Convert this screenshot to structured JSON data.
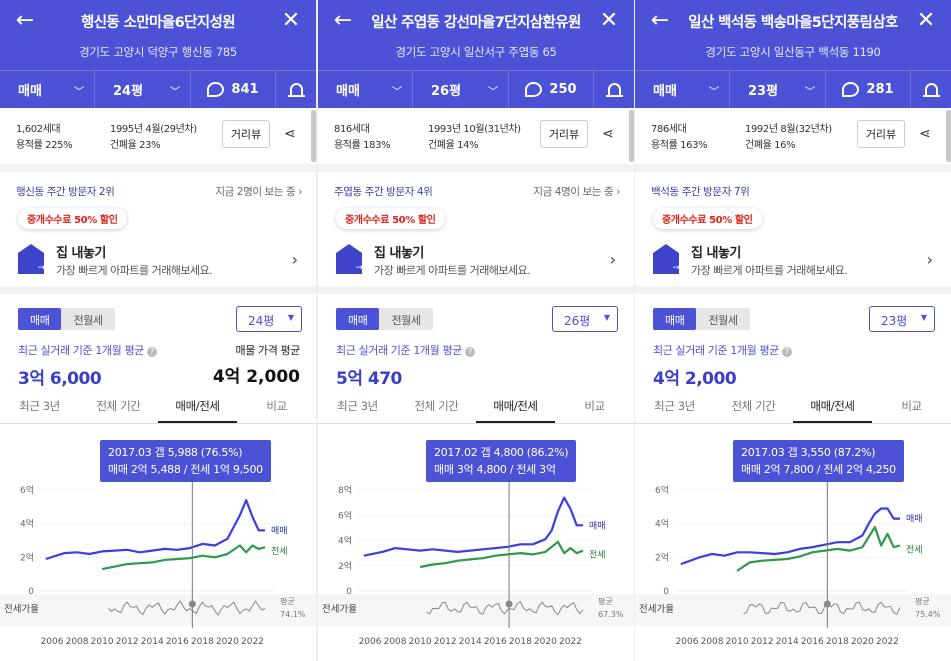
{
  "panels": [
    {
      "header": {
        "title": "행신동 소만마을6단지성원",
        "address": "경기도 고양시 덕양구 행신동 785",
        "deal_type": "매매",
        "size": "24평",
        "comments": "841"
      },
      "info": {
        "households": "1,602세대",
        "far": "용적률 225%",
        "built": "1995년 4월(29년차)",
        "bcr": "건폐율 23%",
        "view_btn": "거리뷰"
      },
      "visitors": {
        "left": "행신동 주간 방문자 2위",
        "right": "지금 2명이 보는 중 ›"
      },
      "promo": {
        "tag": "중개수수료 50% 할인",
        "title": "집 내놓기",
        "subtitle": "가장 빠르게 아파트를 거래해보세요."
      },
      "price": {
        "toggle_on": "매매",
        "toggle_off": "전월세",
        "size_select": "24평",
        "basis": "최근 실거래 기준 1개월 평균",
        "value": "3억 6,000",
        "avg_label": "매물 가격 평균",
        "avg_value": "4억 2,000"
      },
      "tabs": [
        "최근 3년",
        "전체 기간",
        "매매/전세",
        "비교"
      ],
      "tooltip": {
        "line1": "2017.03  갭 5,988 (76.5%)",
        "line2": "매매 2억 5,488 / 전세 1억 9,500"
      },
      "chart_data": {
        "type": "line",
        "x_ticks": [
          "2006",
          "2008",
          "2010",
          "2012",
          "2014",
          "2016",
          "2018",
          "2020",
          "2022"
        ],
        "y_ticks": [
          "6억",
          "4억",
          "2억",
          "0"
        ],
        "ylim": [
          0,
          6
        ],
        "ratio_label": "전세가율",
        "ratio_note": [
          "평균",
          "74.1%"
        ],
        "series": [
          {
            "name": "매매",
            "color": "#3b3fe0",
            "x": [
              2005.5,
              2007,
              2008,
              2009,
              2010,
              2011,
              2012,
              2013,
              2014,
              2015,
              2016,
              2017,
              2018,
              2019,
              2020,
              2020.5,
              2021,
              2021.5,
              2022,
              2022.5,
              2023
            ],
            "values": [
              1.9,
              2.25,
              2.3,
              2.2,
              2.35,
              2.4,
              2.45,
              2.3,
              2.4,
              2.5,
              2.45,
              2.55,
              2.8,
              2.7,
              3.1,
              3.8,
              4.5,
              5.4,
              4.4,
              3.6,
              3.6
            ]
          },
          {
            "name": "전세",
            "color": "#2e9a4a",
            "x": [
              2010,
              2011,
              2012,
              2013,
              2014,
              2015,
              2016,
              2017,
              2018,
              2019,
              2020,
              2021,
              2021.5,
              2022,
              2022.5,
              2023
            ],
            "values": [
              1.3,
              1.45,
              1.6,
              1.65,
              1.7,
              1.85,
              1.9,
              1.95,
              2.1,
              2.0,
              2.2,
              2.7,
              2.3,
              2.7,
              2.5,
              2.6
            ]
          }
        ],
        "cursor_x": 2017.2
      }
    },
    {
      "header": {
        "title": "일산 주엽동 강선마을7단지삼환유원",
        "address": "경기도 고양시 일산서구 주엽동 65",
        "deal_type": "매매",
        "size": "26평",
        "comments": "250"
      },
      "info": {
        "households": "816세대",
        "far": "용적률 183%",
        "built": "1993년 10월(31년차)",
        "bcr": "건폐율 14%",
        "view_btn": "거리뷰"
      },
      "visitors": {
        "left": "주엽동 주간 방문자 4위",
        "right": "지금 4명이 보는 중 ›"
      },
      "promo": {
        "tag": "중개수수료 50% 할인",
        "title": "집 내놓기",
        "subtitle": "가장 빠르게 아파트를 거래해보세요."
      },
      "price": {
        "toggle_on": "매매",
        "toggle_off": "전월세",
        "size_select": "26평",
        "basis": "최근 실거래 기준 1개월 평균",
        "value": "5억 470",
        "avg_label": "",
        "avg_value": ""
      },
      "tabs": [
        "최근 3년",
        "전체 기간",
        "매매/전세",
        "비교"
      ],
      "tooltip": {
        "line1": "2017.02  갭 4,800 (86.2%)",
        "line2": "매매 3억 4,800 / 전세 3억"
      },
      "chart_data": {
        "type": "line",
        "x_ticks": [
          "2006",
          "2008",
          "2010",
          "2012",
          "2014",
          "2016",
          "2018",
          "2020",
          "2022"
        ],
        "y_ticks": [
          "8억",
          "6억",
          "4억",
          "2억",
          "0"
        ],
        "ylim": [
          0,
          8
        ],
        "ratio_label": "전세가율",
        "ratio_note": [
          "평균",
          "67.3%"
        ],
        "series": [
          {
            "name": "매매",
            "color": "#3b3fe0",
            "x": [
              2005.5,
              2007,
              2008,
              2009,
              2010,
              2011,
              2012,
              2013,
              2014,
              2015,
              2016,
              2017,
              2018,
              2019,
              2020,
              2020.5,
              2021,
              2021.5,
              2022,
              2022.5,
              2023
            ],
            "values": [
              2.8,
              3.1,
              3.4,
              3.3,
              3.2,
              3.3,
              3.2,
              3.1,
              3.2,
              3.3,
              3.4,
              3.5,
              3.7,
              3.7,
              4.1,
              4.8,
              6.3,
              7.4,
              6.5,
              5.2,
              5.2
            ]
          },
          {
            "name": "전세",
            "color": "#2e9a4a",
            "x": [
              2010,
              2011,
              2012,
              2013,
              2014,
              2015,
              2016,
              2017,
              2018,
              2019,
              2020,
              2021,
              2021.5,
              2022,
              2022.5,
              2023
            ],
            "values": [
              1.9,
              2.1,
              2.2,
              2.4,
              2.5,
              2.6,
              2.8,
              2.9,
              3.0,
              2.9,
              3.1,
              3.9,
              3.0,
              3.4,
              3.0,
              3.2
            ]
          }
        ],
        "cursor_x": 2017.1
      }
    },
    {
      "header": {
        "title": "일산 백석동 백송마을5단지풍림삼호",
        "address": "경기도 고양시 일산동구 백석동 1190",
        "deal_type": "매매",
        "size": "23평",
        "comments": "281"
      },
      "info": {
        "households": "786세대",
        "far": "용적률 163%",
        "built": "1992년 8월(32년차)",
        "bcr": "건폐율 16%",
        "view_btn": "거리뷰"
      },
      "visitors": {
        "left": "백석동 주간 방문자 7위",
        "right": ""
      },
      "promo": {
        "tag": "중개수수료 50% 할인",
        "title": "집 내놓기",
        "subtitle": "가장 빠르게 아파트를 거래해보세요."
      },
      "price": {
        "toggle_on": "매매",
        "toggle_off": "전월세",
        "size_select": "23평",
        "basis": "최근 실거래 기준 1개월 평균",
        "value": "4억 2,000",
        "avg_label": "",
        "avg_value": ""
      },
      "tabs": [
        "최근 3년",
        "전체 기간",
        "매매/전세",
        "비교"
      ],
      "tooltip": {
        "line1": "2017.03  갭 3,550 (87.2%)",
        "line2": "매매 2억 7,800 / 전세 2억 4,250"
      },
      "chart_data": {
        "type": "line",
        "x_ticks": [
          "2006",
          "2008",
          "2010",
          "2012",
          "2014",
          "2016",
          "2018",
          "2020",
          "2022"
        ],
        "y_ticks": [
          "6억",
          "4억",
          "2억",
          "0"
        ],
        "ylim": [
          0,
          6
        ],
        "ratio_label": "전세가율",
        "ratio_note": [
          "평균",
          "75.4%"
        ],
        "series": [
          {
            "name": "매매",
            "color": "#3b3fe0",
            "x": [
              2005.5,
              2007,
              2008,
              2009,
              2010,
              2011,
              2012,
              2013,
              2014,
              2015,
              2016,
              2017,
              2018,
              2019,
              2020,
              2020.5,
              2021,
              2021.5,
              2022,
              2022.5,
              2023
            ],
            "values": [
              1.6,
              2.0,
              2.2,
              2.1,
              2.3,
              2.3,
              2.25,
              2.2,
              2.3,
              2.5,
              2.6,
              2.75,
              2.9,
              2.9,
              3.3,
              4.0,
              4.6,
              4.9,
              4.9,
              4.3,
              4.3
            ]
          },
          {
            "name": "전세",
            "color": "#2e9a4a",
            "x": [
              2010,
              2011,
              2012,
              2013,
              2014,
              2015,
              2016,
              2017,
              2018,
              2019,
              2020,
              2021,
              2021.5,
              2022,
              2022.5,
              2023
            ],
            "values": [
              1.2,
              1.7,
              1.8,
              1.85,
              1.9,
              2.05,
              2.3,
              2.4,
              2.5,
              2.4,
              2.6,
              3.8,
              2.7,
              3.4,
              2.6,
              2.7
            ]
          }
        ],
        "cursor_x": 2017.2
      }
    }
  ]
}
